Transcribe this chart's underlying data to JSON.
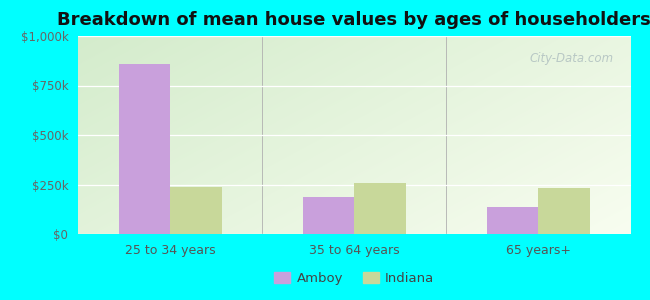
{
  "title": "Breakdown of mean house values by ages of householders",
  "categories": [
    "25 to 34 years",
    "35 to 64 years",
    "65 years+"
  ],
  "amboy_values": [
    857000,
    185000,
    135000
  ],
  "indiana_values": [
    235000,
    260000,
    230000
  ],
  "amboy_color": "#c9a0dc",
  "indiana_color": "#c8d89a",
  "ylim": [
    0,
    1000000
  ],
  "yticks": [
    0,
    250000,
    500000,
    750000,
    1000000
  ],
  "ytick_labels": [
    "$0",
    "$250k",
    "$500k",
    "$750k",
    "$1,000k"
  ],
  "background_color": "#00ffff",
  "legend_labels": [
    "Amboy",
    "Indiana"
  ],
  "bar_width": 0.28,
  "title_fontsize": 13,
  "watermark": "City-Data.com",
  "grad_left_bottom": "#d4eccc",
  "grad_right_top": "#f8fdf0"
}
